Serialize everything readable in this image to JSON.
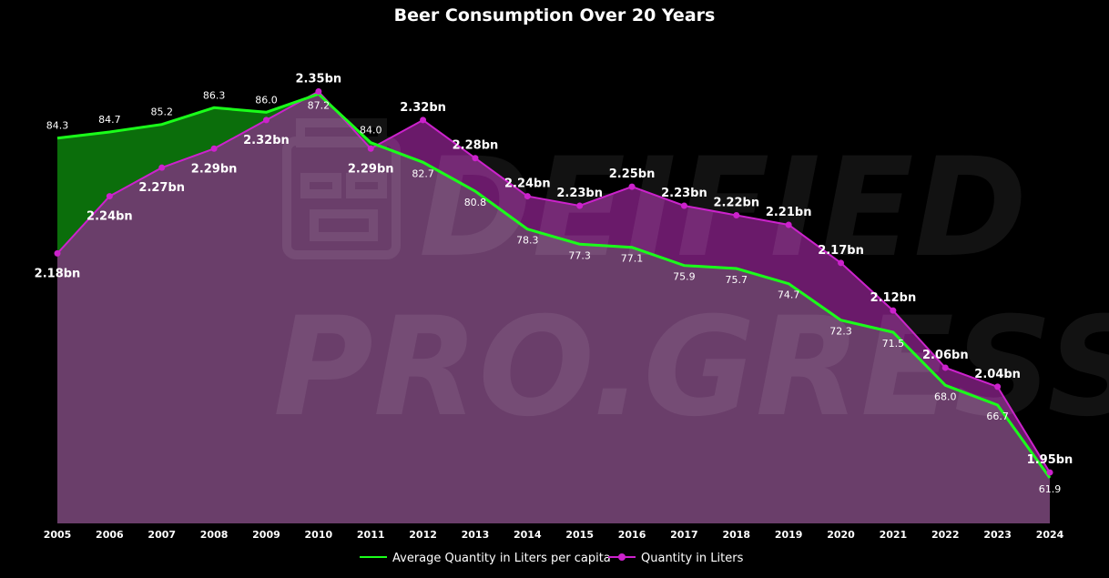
{
  "colors": {
    "background": "#000000",
    "green_line": "#1aff1a",
    "green_fill": "#0b6e0b",
    "purple_line": "#cc22cc",
    "purple_fill": "#6a1a6a",
    "overlap_fill": "#6a3e6a",
    "text": "#ffffff"
  },
  "watermark": {
    "line1": "DEIFIED",
    "line2": "PRO.GRESS",
    "icon": "tiki-mask-icon"
  },
  "chart_data": {
    "type": "area",
    "title": "Beer Consumption Over 20 Years",
    "categories": [
      "2005",
      "2006",
      "2007",
      "2008",
      "2009",
      "2010",
      "2011",
      "2012",
      "2013",
      "2014",
      "2015",
      "2016",
      "2017",
      "2018",
      "2019",
      "2020",
      "2021",
      "2022",
      "2023",
      "2024"
    ],
    "series": [
      {
        "name": "Average Quantity in Liters per capita",
        "values": [
          84.3,
          84.7,
          85.2,
          86.3,
          86.0,
          87.2,
          84.0,
          82.7,
          80.8,
          78.3,
          77.3,
          77.1,
          75.9,
          75.7,
          74.7,
          72.3,
          71.5,
          68.0,
          66.7,
          61.9
        ],
        "labels": [
          "84.3",
          "84.7",
          "85.2",
          "86.3",
          "86.0",
          "87.2",
          "84.0",
          "82.7",
          "80.8",
          "78.3",
          "77.3",
          "77.1",
          "75.9",
          "75.7",
          "74.7",
          "72.3",
          "71.5",
          "68.0",
          "66.7",
          "61.9"
        ],
        "ylim": [
          61,
          88
        ],
        "color": "#1aff1a"
      },
      {
        "name": "Quantity in Liters",
        "values": [
          2.18,
          2.24,
          2.27,
          2.29,
          2.32,
          2.35,
          2.29,
          2.32,
          2.28,
          2.24,
          2.23,
          2.25,
          2.23,
          2.22,
          2.21,
          2.17,
          2.12,
          2.06,
          2.04,
          1.95
        ],
        "labels": [
          "2.18bn",
          "2.24bn",
          "2.27bn",
          "2.29bn",
          "2.32bn",
          "2.35bn",
          "2.29bn",
          "2.32bn",
          "2.28bn",
          "2.24bn",
          "2.23bn",
          "2.25bn",
          "2.23bn",
          "2.22bn",
          "2.21bn",
          "2.17bn",
          "2.12bn",
          "2.06bn",
          "2.04bn",
          "1.95bn"
        ],
        "ylim": [
          1.93,
          2.36
        ],
        "color": "#cc22cc"
      }
    ],
    "legend_position": "bottom-center",
    "grid": false
  }
}
